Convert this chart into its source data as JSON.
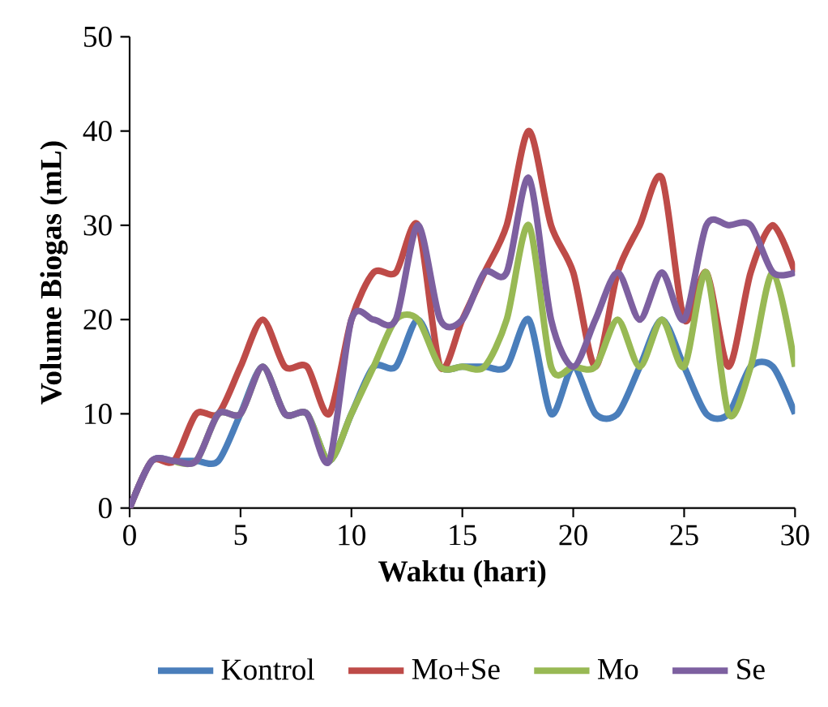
{
  "chart_data": {
    "type": "line",
    "xlabel": "Waktu (hari)",
    "ylabel": "Volume  Biogas (mL)",
    "x": [
      0,
      1,
      2,
      3,
      4,
      5,
      6,
      7,
      8,
      9,
      10,
      11,
      12,
      13,
      14,
      15,
      16,
      17,
      18,
      19,
      20,
      21,
      22,
      23,
      24,
      25,
      26,
      27,
      28,
      29,
      30
    ],
    "xlim": [
      0,
      30
    ],
    "xticks": [
      0,
      5,
      10,
      15,
      20,
      25,
      30
    ],
    "ylim": [
      0,
      50
    ],
    "yticks": [
      0,
      10,
      20,
      30,
      40,
      50
    ],
    "grid": false,
    "legend": "bottom",
    "marker": "none",
    "line_style": "solid",
    "series": [
      {
        "name": "Kontrol",
        "color": "#4a7ebb",
        "values": [
          0,
          5,
          5,
          5,
          5,
          10,
          15,
          10,
          10,
          5,
          10,
          15,
          15,
          20,
          15,
          15,
          15,
          15,
          20,
          10,
          15,
          10,
          10,
          15,
          20,
          15,
          10,
          10,
          15,
          15,
          10
        ]
      },
      {
        "name": "Mo+Se",
        "color": "#be4b48",
        "values": [
          0,
          5,
          5,
          10,
          10,
          15,
          20,
          15,
          15,
          10,
          20,
          25,
          25,
          30,
          15,
          20,
          25,
          30,
          40,
          30,
          25,
          15,
          25,
          30,
          35,
          20,
          25,
          15,
          25,
          30,
          25
        ]
      },
      {
        "name": "Mo",
        "color": "#98b954",
        "values": [
          null,
          null,
          5,
          5,
          10,
          10,
          15,
          10,
          10,
          5,
          10,
          15,
          20,
          20,
          15,
          15,
          15,
          20,
          30,
          15,
          15,
          15,
          20,
          15,
          20,
          15,
          25,
          10,
          15,
          25,
          15
        ]
      },
      {
        "name": "Se",
        "color": "#7d60a0",
        "values": [
          0,
          5,
          5,
          5,
          10,
          10,
          15,
          10,
          10,
          5,
          20,
          20,
          20,
          30,
          20,
          20,
          25,
          25,
          35,
          20,
          15,
          20,
          25,
          20,
          25,
          20,
          30,
          30,
          30,
          25,
          25
        ]
      }
    ]
  }
}
